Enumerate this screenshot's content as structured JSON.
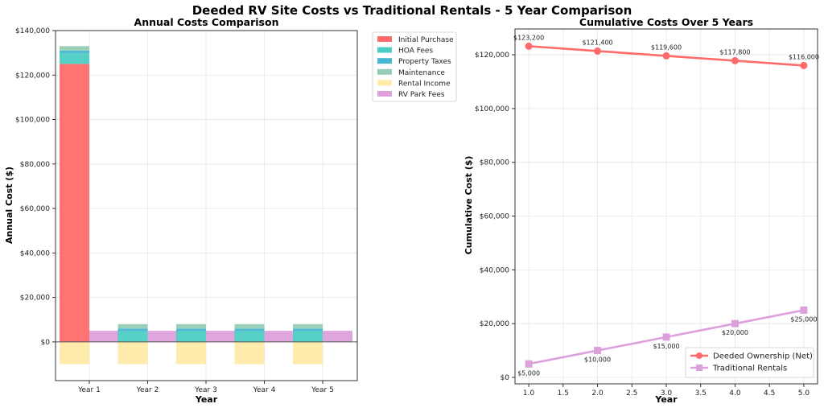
{
  "suptitle": "Deeded RV Site Costs vs Traditional Rentals - 5 Year Comparison",
  "chart_data": [
    {
      "type": "bar",
      "stacked": true,
      "title": "Annual Costs Comparison",
      "xlabel": "Year",
      "ylabel": "Annual Cost ($)",
      "categories": [
        "Year 1",
        "Year 2",
        "Year 3",
        "Year 4",
        "Year 5"
      ],
      "ylim": [
        -17400,
        140000
      ],
      "yticks": [
        0,
        20000,
        40000,
        60000,
        80000,
        100000,
        120000,
        140000
      ],
      "ytick_labels": [
        "$0",
        "$20,000",
        "$40,000",
        "$60,000",
        "$80,000",
        "$100,000",
        "$120,000",
        "$140,000"
      ],
      "grid": true,
      "legend_position": "outside-top-right",
      "series": [
        {
          "name": "Initial Purchase",
          "group": "deeded",
          "color": "#ff6b6b",
          "values": [
            125000,
            0,
            0,
            0,
            0
          ]
        },
        {
          "name": "HOA Fees",
          "group": "deeded",
          "color": "#4ecdc4",
          "values": [
            4800,
            4800,
            4800,
            4800,
            4800
          ]
        },
        {
          "name": "Property Taxes",
          "group": "deeded",
          "color": "#45b7d1",
          "values": [
            1200,
            1200,
            1200,
            1200,
            1200
          ]
        },
        {
          "name": "Maintenance",
          "group": "deeded",
          "color": "#96ceb4",
          "values": [
            2000,
            2000,
            2000,
            2000,
            2000
          ]
        },
        {
          "name": "Rental Income",
          "group": "deeded",
          "color": "#ffeaa7",
          "values": [
            -10000,
            -10000,
            -10000,
            -10000,
            -10000
          ]
        },
        {
          "name": "RV Park Fees",
          "group": "rental",
          "color": "#dda0dd",
          "values": [
            5000,
            5000,
            5000,
            5000,
            5000
          ]
        }
      ]
    },
    {
      "type": "line",
      "title": "Cumulative Costs Over 5 Years",
      "xlabel": "Year",
      "ylabel": "Cumulative Cost ($)",
      "x": [
        1,
        2,
        3,
        4,
        5
      ],
      "xlim": [
        0.8,
        5.2
      ],
      "xticks": [
        1.0,
        1.5,
        2.0,
        2.5,
        3.0,
        3.5,
        4.0,
        4.5,
        5.0
      ],
      "xtick_labels": [
        "1.0",
        "1.5",
        "2.0",
        "2.5",
        "3.0",
        "3.5",
        "4.0",
        "4.5",
        "5.0"
      ],
      "ylim": [
        -2400,
        129600
      ],
      "yticks": [
        0,
        20000,
        40000,
        60000,
        80000,
        100000,
        120000
      ],
      "ytick_labels": [
        "$0",
        "$20,000",
        "$40,000",
        "$60,000",
        "$80,000",
        "$100,000",
        "$120,000"
      ],
      "grid": true,
      "legend_position": "lower-right",
      "series": [
        {
          "name": "Deeded Ownership (Net)",
          "color": "#ff6b6b",
          "marker": "circle",
          "label_position": "above",
          "values": [
            123200,
            121400,
            119600,
            117800,
            116000
          ],
          "labels": [
            "$123,200",
            "$121,400",
            "$119,600",
            "$117,800",
            "$116,000"
          ]
        },
        {
          "name": "Traditional Rentals",
          "color": "#dda0dd",
          "marker": "square",
          "label_position": "below",
          "values": [
            5000,
            10000,
            15000,
            20000,
            25000
          ],
          "labels": [
            "$5,000",
            "$10,000",
            "$15,000",
            "$20,000",
            "$25,000"
          ]
        }
      ]
    }
  ]
}
